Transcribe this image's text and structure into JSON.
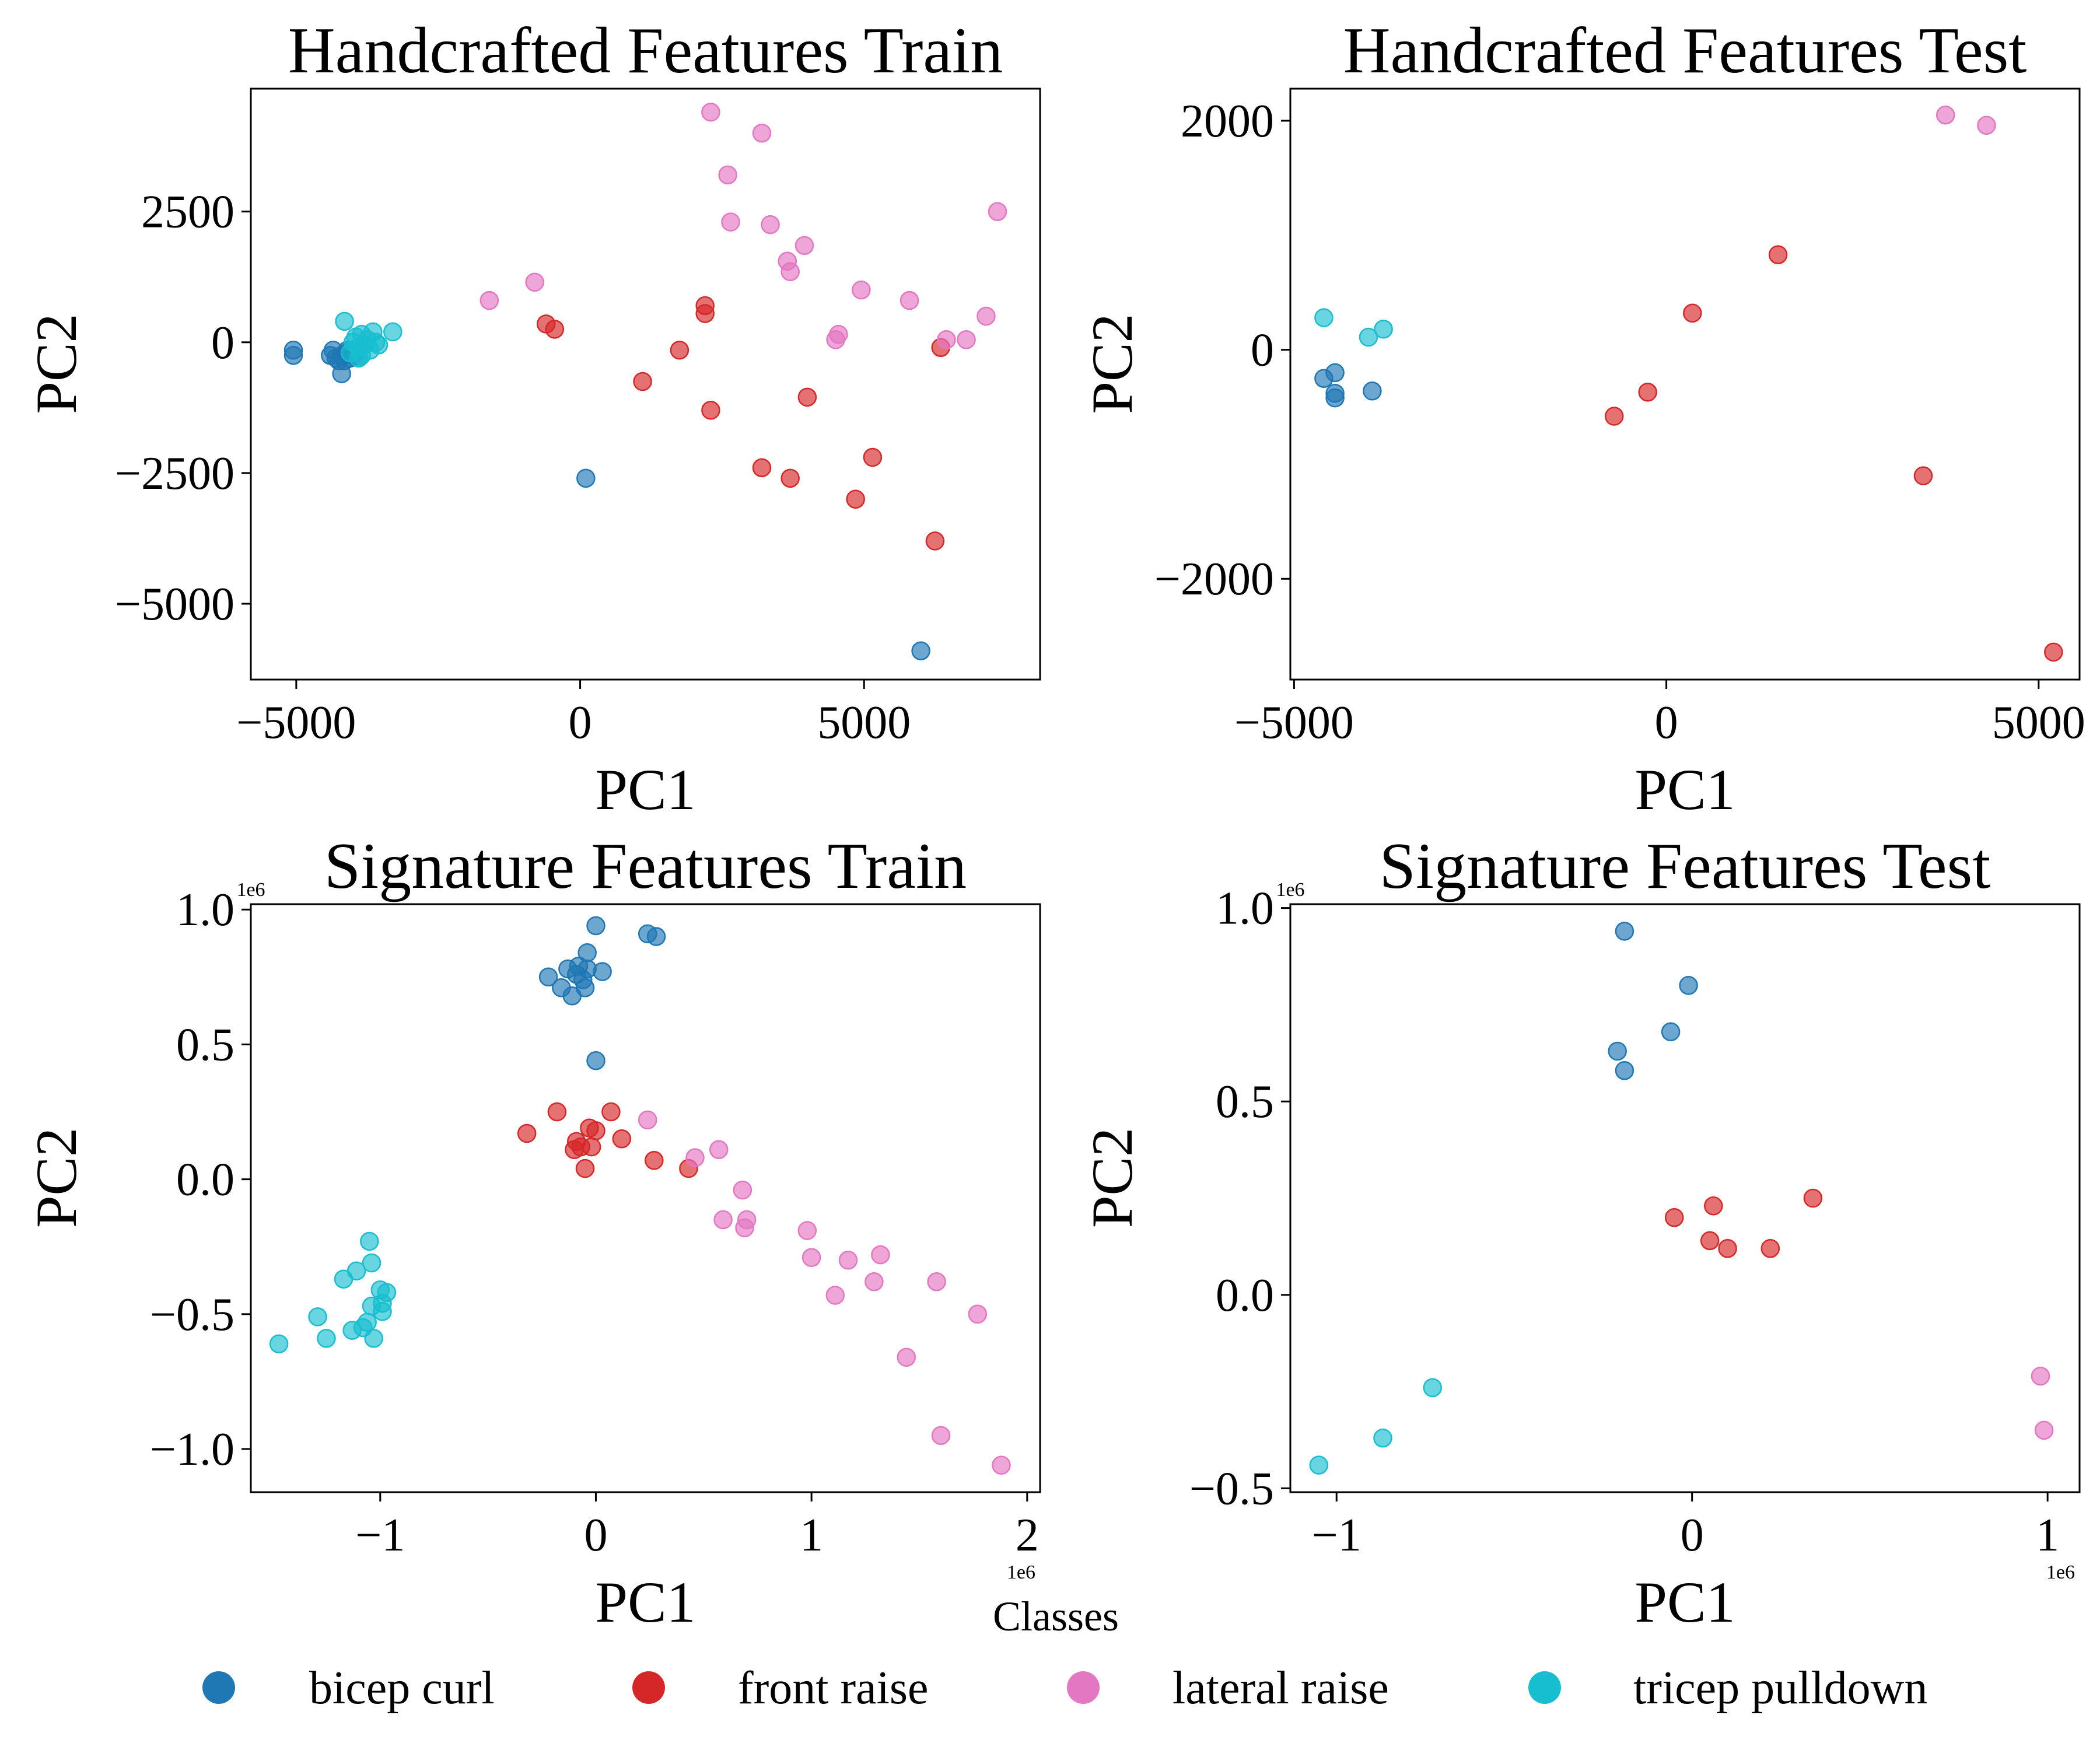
{
  "legend": {
    "title": "Classes",
    "placement": "bottom-center",
    "items": [
      {
        "label": "bicep curl",
        "color": "#1f77b4"
      },
      {
        "label": "front raise",
        "color": "#d62728"
      },
      {
        "label": "lateral raise",
        "color": "#e377c2"
      },
      {
        "label": "tricep pulldown",
        "color": "#17becf"
      }
    ]
  },
  "chart_data": [
    {
      "type": "scatter",
      "title": "Handcrafted Features Train",
      "xlabel": "PC1",
      "ylabel": "PC2",
      "xlim": [
        -5800,
        8100
      ],
      "ylim": [
        -6450,
        4850
      ],
      "xticks": [
        -5000,
        0,
        5000
      ],
      "xtick_labels": [
        "−5000",
        "0",
        "5000"
      ],
      "yticks": [
        -5000,
        -2500,
        0,
        2500
      ],
      "ytick_labels": [
        "−5000",
        "−2500",
        "0",
        "2500"
      ],
      "x_offset_label": "",
      "y_offset_label": "",
      "grid": false,
      "series": [
        {
          "name": "bicep curl",
          "color": "#1f77b4",
          "points": [
            [
              -5050,
              -150
            ],
            [
              -5050,
              -250
            ],
            [
              -4400,
              -250
            ],
            [
              -4350,
              -150
            ],
            [
              -4300,
              -300
            ],
            [
              -4250,
              -350
            ],
            [
              -4200,
              -250
            ],
            [
              -4150,
              -350
            ],
            [
              -4100,
              -200
            ],
            [
              -4050,
              -300
            ],
            [
              -4000,
              -250
            ],
            [
              -3950,
              -200
            ],
            [
              -4200,
              -600
            ],
            [
              -4100,
              -150
            ],
            [
              -3900,
              -300
            ],
            [
              100,
              -2600
            ],
            [
              6000,
              -5900
            ]
          ]
        },
        {
          "name": "front raise",
          "color": "#d62728",
          "points": [
            [
              -600,
              350
            ],
            [
              -450,
              250
            ],
            [
              1100,
              -750
            ],
            [
              1750,
              -150
            ],
            [
              2200,
              700
            ],
            [
              2200,
              550
            ],
            [
              2300,
              -1300
            ],
            [
              3200,
              -2400
            ],
            [
              3700,
              -2600
            ],
            [
              4000,
              -1050
            ],
            [
              4850,
              -3000
            ],
            [
              5150,
              -2200
            ],
            [
              6250,
              -3800
            ],
            [
              6350,
              -100
            ]
          ]
        },
        {
          "name": "lateral raise",
          "color": "#e377c2",
          "points": [
            [
              -1600,
              800
            ],
            [
              -800,
              1150
            ],
            [
              2300,
              4400
            ],
            [
              2600,
              3200
            ],
            [
              2650,
              2300
            ],
            [
              3200,
              4000
            ],
            [
              3350,
              2250
            ],
            [
              3650,
              1550
            ],
            [
              3700,
              1350
            ],
            [
              3950,
              1850
            ],
            [
              4500,
              50
            ],
            [
              4550,
              150
            ],
            [
              4950,
              1000
            ],
            [
              5800,
              800
            ],
            [
              6450,
              50
            ],
            [
              6800,
              50
            ],
            [
              7150,
              500
            ],
            [
              7350,
              2500
            ]
          ]
        },
        {
          "name": "tricep pulldown",
          "color": "#17becf",
          "points": [
            [
              -4150,
              400
            ],
            [
              -4000,
              0
            ],
            [
              -3950,
              100
            ],
            [
              -3900,
              -100
            ],
            [
              -3850,
              150
            ],
            [
              -3800,
              -50
            ],
            [
              -3750,
              50
            ],
            [
              -3700,
              -150
            ],
            [
              -3650,
              200
            ],
            [
              -3600,
              0
            ],
            [
              -3550,
              -50
            ],
            [
              -3300,
              200
            ],
            [
              -3900,
              -300
            ],
            [
              -4050,
              -200
            ],
            [
              -3850,
              -250
            ]
          ]
        }
      ]
    },
    {
      "type": "scatter",
      "title": "Handcrafted Features Test",
      "xlabel": "PC1",
      "ylabel": "PC2",
      "xlim": [
        -5050,
        5550
      ],
      "ylim": [
        -2880,
        2280
      ],
      "xticks": [
        -5000,
        0,
        5000
      ],
      "xtick_labels": [
        "−5000",
        "0",
        "5000"
      ],
      "yticks": [
        -2000,
        0,
        2000
      ],
      "ytick_labels": [
        "−2000",
        "0",
        "2000"
      ],
      "x_offset_label": "",
      "y_offset_label": "",
      "grid": false,
      "series": [
        {
          "name": "bicep curl",
          "color": "#1f77b4",
          "points": [
            [
              -4600,
              -250
            ],
            [
              -4450,
              -200
            ],
            [
              -4450,
              -380
            ],
            [
              -4450,
              -420
            ],
            [
              -3950,
              -360
            ]
          ]
        },
        {
          "name": "front raise",
          "color": "#d62728",
          "points": [
            [
              -700,
              -580
            ],
            [
              -250,
              -370
            ],
            [
              350,
              320
            ],
            [
              1500,
              830
            ],
            [
              3450,
              -1100
            ],
            [
              5200,
              -2640
            ]
          ]
        },
        {
          "name": "lateral raise",
          "color": "#e377c2",
          "points": [
            [
              3750,
              2050
            ],
            [
              4300,
              1960
            ]
          ]
        },
        {
          "name": "tricep pulldown",
          "color": "#17becf",
          "points": [
            [
              -4600,
              280
            ],
            [
              -4000,
              110
            ],
            [
              -3800,
              180
            ]
          ]
        }
      ]
    },
    {
      "type": "scatter",
      "title": "Signature Features Train",
      "xlabel": "PC1",
      "ylabel": "PC2",
      "xlim": [
        -1600000,
        2060000
      ],
      "ylim": [
        -1160000,
        1020000
      ],
      "xticks": [
        -1000000,
        0,
        1000000,
        2000000
      ],
      "xtick_labels": [
        "−1",
        "0",
        "1",
        "2"
      ],
      "yticks": [
        -1000000,
        -500000,
        0,
        500000,
        1000000
      ],
      "ytick_labels": [
        "−1.0",
        "−0.5",
        "0.0",
        "0.5",
        "1.0"
      ],
      "x_offset_label": "1e6",
      "y_offset_label": "1e6",
      "grid": false,
      "series": [
        {
          "name": "bicep curl",
          "color": "#1f77b4",
          "points": [
            [
              -220000,
              750000
            ],
            [
              -160000,
              710000
            ],
            [
              -130000,
              780000
            ],
            [
              -110000,
              680000
            ],
            [
              -90000,
              760000
            ],
            [
              -80000,
              790000
            ],
            [
              -60000,
              740000
            ],
            [
              -50000,
              710000
            ],
            [
              -40000,
              780000
            ],
            [
              -40000,
              840000
            ],
            [
              0,
              940000
            ],
            [
              30000,
              770000
            ],
            [
              240000,
              910000
            ],
            [
              280000,
              900000
            ],
            [
              0,
              440000
            ]
          ]
        },
        {
          "name": "front raise",
          "color": "#d62728",
          "points": [
            [
              -320000,
              170000
            ],
            [
              -180000,
              250000
            ],
            [
              -100000,
              110000
            ],
            [
              -90000,
              140000
            ],
            [
              -70000,
              120000
            ],
            [
              -50000,
              40000
            ],
            [
              -30000,
              190000
            ],
            [
              -20000,
              120000
            ],
            [
              0,
              180000
            ],
            [
              70000,
              250000
            ],
            [
              120000,
              150000
            ],
            [
              270000,
              70000
            ],
            [
              430000,
              40000
            ]
          ]
        },
        {
          "name": "lateral raise",
          "color": "#e377c2",
          "points": [
            [
              240000,
              220000
            ],
            [
              460000,
              80000
            ],
            [
              570000,
              110000
            ],
            [
              590000,
              -150000
            ],
            [
              680000,
              -40000
            ],
            [
              690000,
              -180000
            ],
            [
              700000,
              -150000
            ],
            [
              980000,
              -190000
            ],
            [
              1000000,
              -290000
            ],
            [
              1110000,
              -430000
            ],
            [
              1170000,
              -300000
            ],
            [
              1290000,
              -380000
            ],
            [
              1320000,
              -280000
            ],
            [
              1440000,
              -660000
            ],
            [
              1580000,
              -380000
            ],
            [
              1600000,
              -950000
            ],
            [
              1770000,
              -500000
            ],
            [
              1880000,
              -1060000
            ]
          ]
        },
        {
          "name": "tricep pulldown",
          "color": "#17becf",
          "points": [
            [
              -1470000,
              -610000
            ],
            [
              -1290000,
              -510000
            ],
            [
              -1250000,
              -590000
            ],
            [
              -1170000,
              -370000
            ],
            [
              -1130000,
              -560000
            ],
            [
              -1110000,
              -340000
            ],
            [
              -1080000,
              -550000
            ],
            [
              -1060000,
              -530000
            ],
            [
              -1050000,
              -230000
            ],
            [
              -1040000,
              -470000
            ],
            [
              -1040000,
              -310000
            ],
            [
              -1030000,
              -590000
            ],
            [
              -1000000,
              -410000
            ],
            [
              -990000,
              -460000
            ],
            [
              -990000,
              -490000
            ],
            [
              -970000,
              -420000
            ]
          ]
        }
      ]
    },
    {
      "type": "scatter",
      "title": "Signature Features Test",
      "xlabel": "PC1",
      "ylabel": "PC2",
      "xlim": [
        -1130000,
        1090000
      ],
      "ylim": [
        -510000,
        1010000
      ],
      "xticks": [
        -1000000,
        0,
        1000000
      ],
      "xtick_labels": [
        "−1",
        "0",
        "1"
      ],
      "yticks": [
        -500000,
        0,
        500000,
        1000000
      ],
      "ytick_labels": [
        "−0.5",
        "0.0",
        "0.5",
        "1.0"
      ],
      "x_offset_label": "1e6",
      "y_offset_label": "1e6",
      "grid": false,
      "series": [
        {
          "name": "bicep curl",
          "color": "#1f77b4",
          "points": [
            [
              -210000,
              630000
            ],
            [
              -190000,
              580000
            ],
            [
              -190000,
              940000
            ],
            [
              -60000,
              680000
            ],
            [
              -10000,
              800000
            ]
          ]
        },
        {
          "name": "front raise",
          "color": "#d62728",
          "points": [
            [
              -50000,
              200000
            ],
            [
              50000,
              140000
            ],
            [
              60000,
              230000
            ],
            [
              100000,
              120000
            ],
            [
              220000,
              120000
            ],
            [
              340000,
              250000
            ]
          ]
        },
        {
          "name": "lateral raise",
          "color": "#e377c2",
          "points": [
            [
              980000,
              -210000
            ],
            [
              990000,
              -350000
            ]
          ]
        },
        {
          "name": "tricep pulldown",
          "color": "#17becf",
          "points": [
            [
              -1050000,
              -440000
            ],
            [
              -870000,
              -370000
            ],
            [
              -730000,
              -240000
            ]
          ]
        }
      ]
    }
  ]
}
